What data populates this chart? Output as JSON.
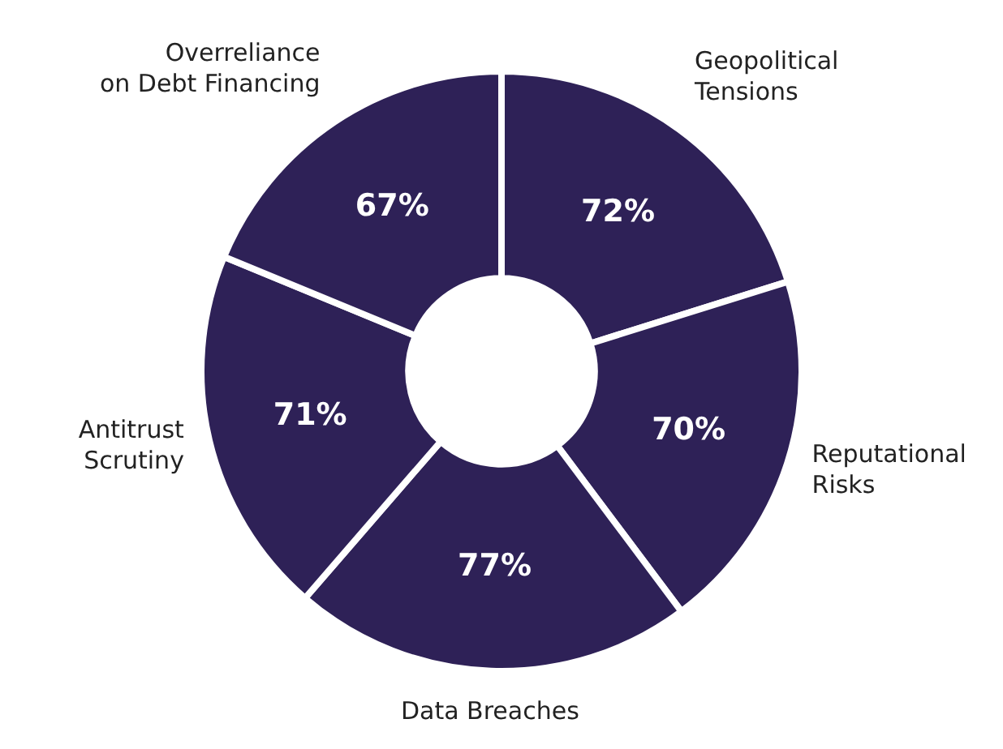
{
  "chart_data": {
    "type": "donut",
    "categories": [
      "Geopolitical\nTensions",
      "Reputational\nRisks",
      "Data Breaches",
      "Antitrust\nScrutiny",
      "Overreliance\non Debt Financing"
    ],
    "values": [
      72,
      70,
      77,
      71,
      67
    ],
    "value_labels": [
      "72%",
      "70%",
      "77%",
      "71%",
      "67%"
    ],
    "colors": [
      "#2e2157",
      "#2e2157",
      "#2e2157",
      "#2e2157",
      "#2e2157"
    ],
    "legend": false
  }
}
